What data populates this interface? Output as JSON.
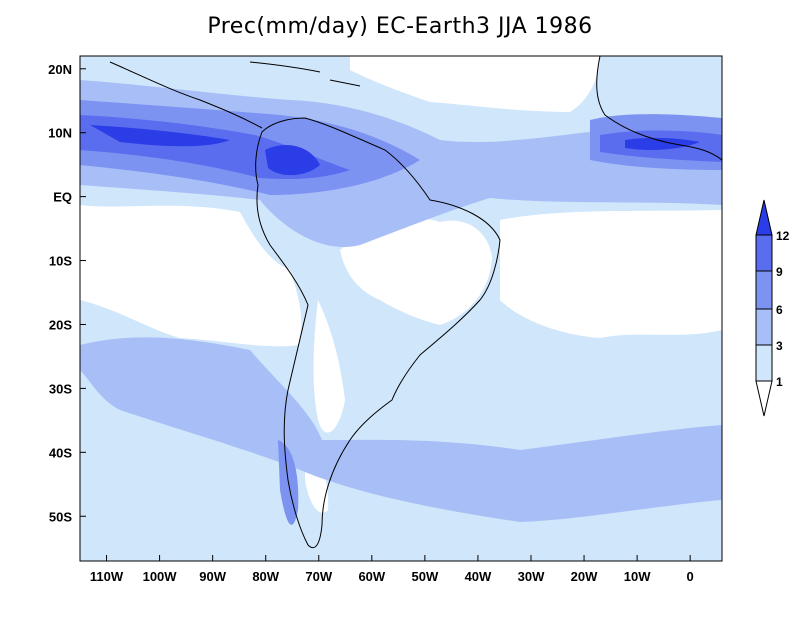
{
  "title": "Prec(mm/day) EC-Earth3 JJA 1986",
  "map": {
    "lon_range": [
      -115,
      6
    ],
    "lat_range": [
      -57,
      22
    ],
    "lon_ticks": [
      {
        "value": -110,
        "label": "110W"
      },
      {
        "value": -100,
        "label": "100W"
      },
      {
        "value": -90,
        "label": "90W"
      },
      {
        "value": -80,
        "label": "80W"
      },
      {
        "value": -70,
        "label": "70W"
      },
      {
        "value": -60,
        "label": "60W"
      },
      {
        "value": -50,
        "label": "50W"
      },
      {
        "value": -40,
        "label": "40W"
      },
      {
        "value": -30,
        "label": "30W"
      },
      {
        "value": -20,
        "label": "20W"
      },
      {
        "value": -10,
        "label": "10W"
      },
      {
        "value": 0,
        "label": "0"
      }
    ],
    "lat_ticks": [
      {
        "value": 20,
        "label": "20N"
      },
      {
        "value": 10,
        "label": "10N"
      },
      {
        "value": 0,
        "label": "EQ"
      },
      {
        "value": -10,
        "label": "10S"
      },
      {
        "value": -20,
        "label": "20S"
      },
      {
        "value": -30,
        "label": "30S"
      },
      {
        "value": -40,
        "label": "40S"
      },
      {
        "value": -50,
        "label": "50S"
      }
    ]
  },
  "colorbar": {
    "levels": [
      "1",
      "3",
      "6",
      "9",
      "12"
    ],
    "colors": {
      "lt1": "#ffffff",
      "c1": "#cfe6fb",
      "c3": "#a8bef7",
      "c6": "#7d93f1",
      "c9": "#5a6def",
      "c12": "#2a3de6"
    }
  }
}
